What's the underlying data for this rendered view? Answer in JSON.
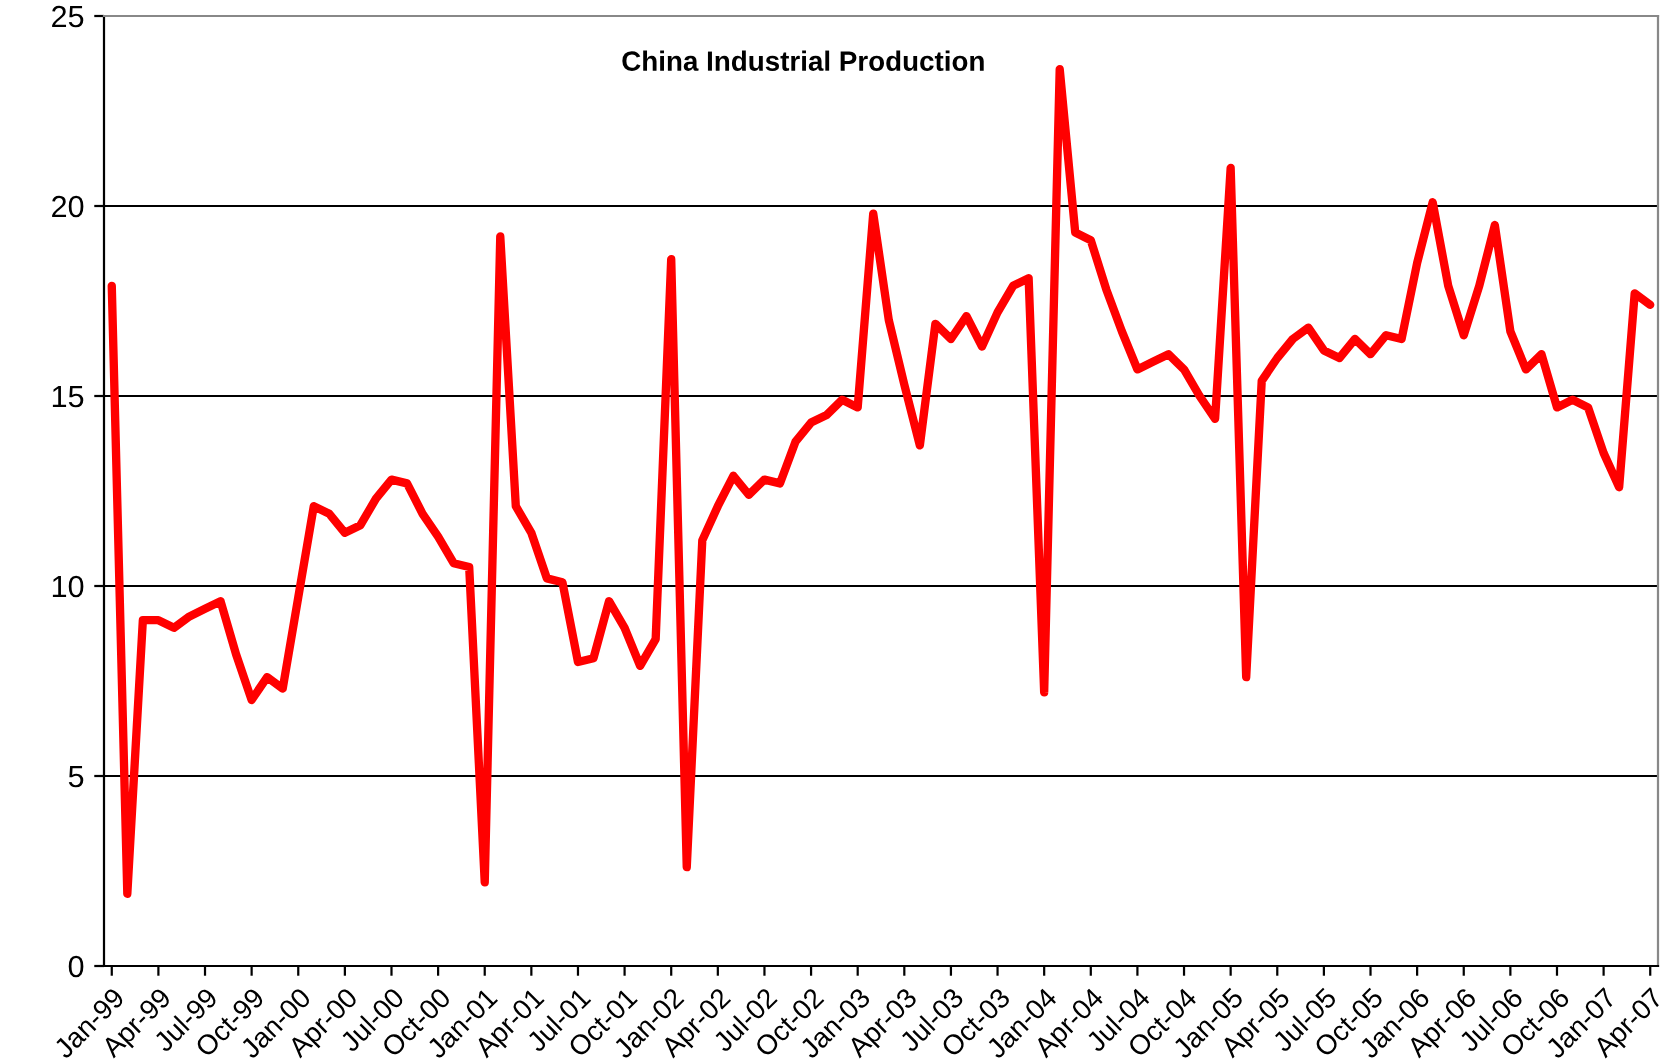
{
  "chart_data": {
    "type": "line",
    "title": "China Industrial Production",
    "categories": [
      "Jan-99",
      null,
      null,
      "Apr-99",
      null,
      null,
      "Jul-99",
      null,
      null,
      "Oct-99",
      null,
      null,
      "Jan-00",
      null,
      null,
      "Apr-00",
      null,
      null,
      "Jul-00",
      null,
      null,
      "Oct-00",
      null,
      null,
      "Jan-01",
      null,
      null,
      "Apr-01",
      null,
      null,
      "Jul-01",
      null,
      null,
      "Oct-01",
      null,
      null,
      "Jan-02",
      null,
      null,
      "Apr-02",
      null,
      null,
      "Jul-02",
      null,
      null,
      "Oct-02",
      null,
      null,
      "Jan-03",
      null,
      null,
      "Apr-03",
      null,
      null,
      "Jul-03",
      null,
      null,
      "Oct-03",
      null,
      null,
      "Jan-04",
      null,
      null,
      "Apr-04",
      null,
      null,
      "Jul-04",
      null,
      null,
      "Oct-04",
      null,
      null,
      "Jan-05",
      null,
      null,
      "Apr-05",
      null,
      null,
      "Jul-05",
      null,
      null,
      "Oct-05",
      null,
      null,
      "Jan-06",
      null,
      null,
      "Apr-06",
      null,
      null,
      "Jul-06",
      null,
      null,
      "Oct-06",
      null,
      null,
      "Jan-07",
      null,
      null,
      "Apr-07"
    ],
    "series": [
      {
        "color": "#ff0000",
        "values": [
          17.9,
          1.9,
          9.1,
          9.1,
          8.9,
          9.2,
          9.4,
          9.6,
          8.2,
          7.0,
          7.6,
          7.3,
          9.7,
          12.1,
          11.9,
          11.4,
          11.6,
          12.3,
          12.8,
          12.7,
          11.9,
          11.3,
          10.6,
          10.5,
          2.2,
          19.2,
          12.1,
          11.4,
          10.2,
          10.1,
          8.0,
          8.1,
          9.6,
          8.9,
          7.9,
          8.6,
          18.6,
          2.6,
          11.2,
          12.1,
          12.9,
          12.4,
          12.8,
          12.7,
          13.8,
          14.3,
          14.5,
          14.9,
          14.7,
          19.8,
          17.0,
          15.3,
          13.7,
          16.9,
          16.5,
          17.1,
          16.3,
          17.2,
          17.9,
          18.1,
          7.2,
          23.6,
          19.3,
          19.1,
          17.8,
          16.7,
          15.7,
          15.9,
          16.1,
          15.7,
          15.0,
          14.4,
          21.0,
          7.6,
          15.4,
          16.0,
          16.5,
          16.8,
          16.2,
          16.0,
          16.5,
          16.1,
          16.6,
          16.5,
          18.5,
          20.1,
          17.9,
          16.6,
          17.9,
          19.5,
          16.7,
          15.7,
          16.1,
          14.7,
          14.9,
          14.7,
          13.5,
          12.6,
          17.7,
          17.4
        ]
      }
    ],
    "ylim": [
      0,
      25
    ],
    "yticks": [
      0,
      5,
      10,
      15,
      20,
      25
    ],
    "grid": "y",
    "marker": "none",
    "line_style": "solid"
  }
}
